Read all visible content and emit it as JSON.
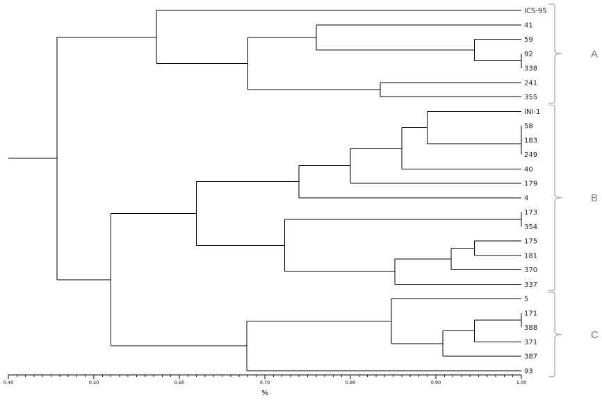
{
  "axis": {
    "min": 0.4,
    "max": 1.0,
    "tick_labels": [
      "0.40",
      "0.50",
      "0.60",
      "0.70",
      "0.80",
      "0.90",
      "1.00"
    ],
    "title": "%"
  },
  "leaves": [
    "ICS-95",
    "41",
    "59",
    "92",
    "338",
    "241",
    "355",
    "INI-1",
    "58",
    "183",
    "249",
    "40",
    "179",
    "4",
    "173",
    "354",
    "175",
    "181",
    "370",
    "337",
    "5",
    "171",
    "388",
    "371",
    "387",
    "93"
  ],
  "merges": [
    {
      "a": 3,
      "b": 4,
      "sim": 1.0
    },
    {
      "a": 2,
      "b": 3,
      "sim": 0.945
    },
    {
      "a": 1,
      "b": 2,
      "sim": 0.76
    },
    {
      "a": 5,
      "b": 6,
      "sim": 0.835
    },
    {
      "a": 1,
      "b": 5,
      "sim": 0.68
    },
    {
      "a": 0,
      "b": 1,
      "sim": 0.573
    },
    {
      "a": 8,
      "b": 9,
      "sim": 1.0
    },
    {
      "a": 8,
      "b": 10,
      "sim": 1.0
    },
    {
      "a": 7,
      "b": 8,
      "sim": 0.89
    },
    {
      "a": 7,
      "b": 11,
      "sim": 0.86
    },
    {
      "a": 7,
      "b": 12,
      "sim": 0.8
    },
    {
      "a": 7,
      "b": 13,
      "sim": 0.74
    },
    {
      "a": 14,
      "b": 15,
      "sim": 1.0
    },
    {
      "a": 16,
      "b": 17,
      "sim": 0.945
    },
    {
      "a": 16,
      "b": 18,
      "sim": 0.918
    },
    {
      "a": 16,
      "b": 19,
      "sim": 0.852
    },
    {
      "a": 14,
      "b": 16,
      "sim": 0.723
    },
    {
      "a": 7,
      "b": 14,
      "sim": 0.62
    },
    {
      "a": 21,
      "b": 22,
      "sim": 1.0
    },
    {
      "a": 21,
      "b": 23,
      "sim": 0.945
    },
    {
      "a": 21,
      "b": 24,
      "sim": 0.908
    },
    {
      "a": 20,
      "b": 21,
      "sim": 0.848
    },
    {
      "a": 20,
      "b": 25,
      "sim": 0.679
    },
    {
      "a": 7,
      "b": 20,
      "sim": 0.52
    },
    {
      "a": 0,
      "b": 7,
      "sim": 0.457
    }
  ],
  "root_extends_to": 0.4,
  "groups": [
    {
      "label": "A",
      "first": 0,
      "last": 6
    },
    {
      "label": "B",
      "first": 7,
      "last": 19
    },
    {
      "label": "C",
      "first": 20,
      "last": 25
    }
  ]
}
